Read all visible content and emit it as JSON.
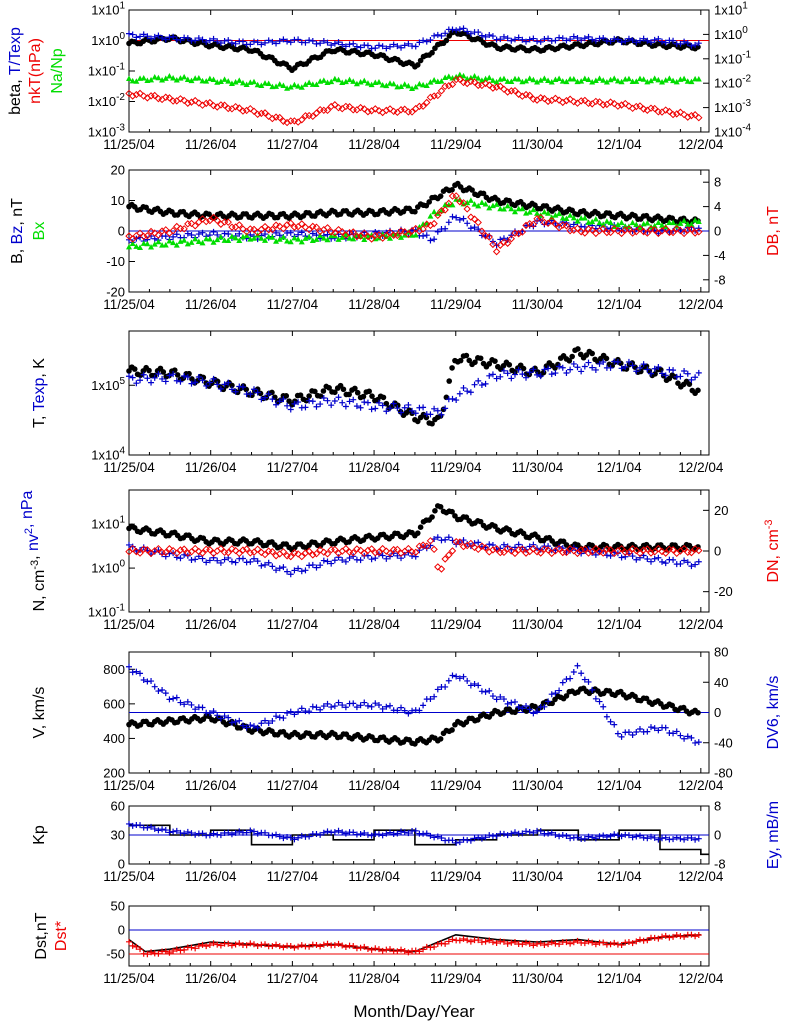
{
  "xlabel": "Month/Day/Year",
  "date_ticks": [
    "11/25/04",
    "11/26/04",
    "11/27/04",
    "11/28/04",
    "11/29/04",
    "11/30/04",
    "12/1/04",
    "12/2/04"
  ],
  "colors": {
    "black": "#000000",
    "blue": "#0000cc",
    "red": "#ee0000",
    "green": "#00dd00"
  },
  "chart_data": [
    {
      "panel": "beta",
      "type": "scatter",
      "ylabel_left": [
        [
          "beta, ",
          "black"
        ],
        [
          "T/Texp",
          "blue"
        ]
      ],
      "ylabel_left2": [
        [
          "nkT(nPa)",
          "red"
        ]
      ],
      "ylabel_left3": [
        [
          "Na/Np",
          "green"
        ]
      ],
      "y_left": {
        "scale": "log",
        "range": [
          0.001,
          10
        ],
        "ticks": [
          "1x10-3",
          "1x10-2",
          "1x10-1",
          "1x100",
          "1x101"
        ]
      },
      "y_right": {
        "scale": "log",
        "range": [
          0.0001,
          10
        ],
        "ticks": [
          "1x10-4",
          "1x10-3",
          "1x10-2",
          "1x10-1",
          "1x100",
          "1x101"
        ]
      },
      "hlines": [
        {
          "value": 1,
          "color": "red"
        }
      ],
      "series": [
        {
          "color": "black",
          "marker": "dot",
          "days": [
            0,
            0.5,
            1,
            1.5,
            2,
            2.5,
            3,
            3.5,
            4,
            4.5,
            5,
            5.5,
            6,
            6.5,
            7
          ],
          "values": [
            0.8,
            1.2,
            0.7,
            0.5,
            0.12,
            0.5,
            0.35,
            0.15,
            2,
            0.6,
            0.5,
            0.7,
            1,
            0.7,
            0.6
          ]
        },
        {
          "color": "blue",
          "marker": "plus",
          "days": [
            0,
            0.5,
            1,
            1.5,
            2,
            2.5,
            3,
            3.5,
            4,
            4.5,
            5,
            5.5,
            6,
            6.5,
            7
          ],
          "values": [
            1.5,
            1.2,
            1,
            0.8,
            1,
            0.8,
            0.6,
            0.7,
            2.5,
            1.2,
            1,
            1.2,
            1,
            1,
            0.7
          ]
        },
        {
          "color": "green",
          "marker": "triangle",
          "days": [
            0,
            0.5,
            1,
            1.5,
            2,
            2.5,
            3,
            3.5,
            4,
            4.5,
            5,
            5.5,
            6,
            6.5,
            7
          ],
          "values": [
            0.05,
            0.06,
            0.05,
            0.04,
            0.03,
            0.05,
            0.04,
            0.03,
            0.07,
            0.05,
            0.05,
            0.05,
            0.05,
            0.05,
            0.05
          ]
        },
        {
          "color": "red",
          "marker": "diamond",
          "days": [
            0,
            0.5,
            1,
            1.5,
            2,
            2.5,
            3,
            3.5,
            4,
            4.5,
            5,
            5.5,
            6,
            6.5,
            7
          ],
          "values": [
            0.018,
            0.012,
            0.008,
            0.005,
            0.002,
            0.007,
            0.005,
            0.005,
            0.05,
            0.03,
            0.012,
            0.01,
            0.008,
            0.005,
            0.003
          ]
        }
      ]
    },
    {
      "panel": "B",
      "type": "scatter",
      "ylabel_left": [
        [
          "B, ",
          "black"
        ],
        [
          "Bz",
          "blue"
        ],
        [
          ", nT",
          "black"
        ]
      ],
      "ylabel_left2": [
        [
          "Bx",
          "green"
        ]
      ],
      "ylabel_right": [
        [
          "DB, nT",
          "red"
        ]
      ],
      "y_left": {
        "scale": "linear",
        "range": [
          -20,
          20
        ],
        "ticks": [
          "-20",
          "-10",
          "0",
          "10",
          "20"
        ]
      },
      "y_right": {
        "scale": "linear",
        "range": [
          -10,
          10
        ],
        "ticks": [
          "-8",
          "-4",
          "0",
          "4",
          "8"
        ]
      },
      "hlines": [
        {
          "value": 0,
          "color": "blue"
        }
      ],
      "series": [
        {
          "color": "black",
          "marker": "dot",
          "days": [
            0,
            0.5,
            1,
            1.5,
            2,
            2.5,
            3,
            3.5,
            3.7,
            4,
            4.5,
            5,
            5.5,
            6,
            6.5,
            7
          ],
          "values": [
            8,
            6,
            5,
            5,
            5,
            6,
            6,
            7,
            10,
            15,
            10,
            8,
            6,
            5,
            4,
            3
          ]
        },
        {
          "color": "blue",
          "marker": "plus",
          "days": [
            0,
            0.5,
            1,
            1.5,
            2,
            2.5,
            3,
            3.5,
            3.7,
            4,
            4.5,
            5,
            5.5,
            6,
            6.5,
            7
          ],
          "values": [
            -3,
            -2,
            -1,
            -2,
            -1,
            -2,
            -1,
            0,
            -3,
            5,
            -4,
            3,
            2,
            1,
            0,
            1
          ]
        },
        {
          "color": "green",
          "marker": "triangle",
          "days": [
            0,
            0.5,
            1,
            1.5,
            2,
            2.5,
            3,
            3.5,
            3.7,
            4,
            4.5,
            5,
            5.5,
            6,
            6.5,
            7
          ],
          "values": [
            -5,
            -4,
            -3,
            -2,
            -3,
            -2,
            -2,
            -1,
            5,
            10,
            8,
            6,
            4,
            2,
            2,
            3
          ]
        },
        {
          "color": "red",
          "marker": "diamond",
          "days": [
            0,
            0.5,
            1,
            1.5,
            2,
            2.5,
            3,
            3.5,
            3.7,
            4,
            4.5,
            5,
            5.5,
            6,
            6.5,
            7
          ],
          "values": [
            -1,
            0,
            2,
            0,
            1,
            0,
            -1,
            0,
            1,
            6,
            -3,
            2,
            0,
            0,
            0,
            0
          ]
        }
      ]
    },
    {
      "panel": "T",
      "type": "scatter",
      "ylabel_left": [
        [
          "T, ",
          "black"
        ],
        [
          "Texp",
          "blue"
        ],
        [
          ", K",
          "black"
        ]
      ],
      "y_left": {
        "scale": "log",
        "range": [
          10000,
          600000
        ],
        "ticks": [
          "1x104",
          "1x105"
        ]
      },
      "hlines": [],
      "series": [
        {
          "color": "black",
          "marker": "dot",
          "days": [
            0,
            0.5,
            1,
            1.5,
            2,
            2.5,
            3,
            3.5,
            3.8,
            4,
            4.5,
            5,
            5.5,
            6,
            6.5,
            7
          ],
          "values": [
            160000,
            150000,
            110000,
            80000,
            60000,
            90000,
            70000,
            35000,
            30000,
            250000,
            200000,
            150000,
            300000,
            200000,
            150000,
            80000
          ]
        },
        {
          "color": "blue",
          "marker": "plus",
          "days": [
            0,
            0.5,
            1,
            1.5,
            2,
            2.5,
            3,
            3.5,
            3.8,
            4,
            4.5,
            5,
            5.5,
            6,
            6.5,
            7
          ],
          "values": [
            120000,
            130000,
            110000,
            80000,
            50000,
            60000,
            50000,
            45000,
            40000,
            70000,
            140000,
            150000,
            180000,
            200000,
            160000,
            130000
          ]
        }
      ]
    },
    {
      "panel": "N",
      "type": "scatter",
      "ylabel_left": [
        [
          "N, cm",
          "black"
        ],
        [
          "-3",
          "black",
          "sup"
        ],
        [
          ", ",
          "black"
        ],
        [
          "nv",
          "blue"
        ],
        [
          "2",
          "blue",
          "sup"
        ],
        [
          ", nPa",
          "blue"
        ]
      ],
      "ylabel_right": [
        [
          "DN, cm",
          "red"
        ],
        [
          "-3",
          "red",
          "sup"
        ]
      ],
      "y_left": {
        "scale": "log",
        "range": [
          0.1,
          60
        ],
        "ticks": [
          "1x10-1",
          "1x100",
          "1x101"
        ]
      },
      "y_right": {
        "scale": "linear",
        "range": [
          -30,
          30
        ],
        "ticks": [
          "-20",
          "0",
          "20"
        ]
      },
      "hlines": [],
      "series": [
        {
          "color": "black",
          "marker": "dot",
          "days": [
            0,
            0.5,
            1,
            1.5,
            2,
            2.5,
            3,
            3.5,
            3.8,
            4,
            4.5,
            5,
            5.5,
            6,
            6.5,
            7
          ],
          "values": [
            8,
            6,
            4,
            4,
            3,
            4,
            5,
            6,
            25,
            15,
            8,
            5,
            3,
            3,
            3,
            3
          ]
        },
        {
          "color": "blue",
          "marker": "plus",
          "days": [
            0,
            0.5,
            1,
            1.5,
            2,
            2.5,
            3,
            3.5,
            3.8,
            4,
            4.5,
            5,
            5.5,
            6,
            6.5,
            7
          ],
          "values": [
            3,
            2,
            1.5,
            1.5,
            0.8,
            1.5,
            1.8,
            2,
            5,
            4,
            3,
            3,
            2.5,
            2,
            1.5,
            1.2
          ]
        },
        {
          "color": "red",
          "marker": "diamond",
          "days": [
            0,
            0.5,
            1,
            1.5,
            2,
            2.5,
            3,
            3.5,
            3.7,
            3.8,
            4,
            4.5,
            5,
            5.5,
            6,
            6.5,
            7
          ],
          "values": [
            0,
            0,
            0,
            0,
            -2,
            0,
            0,
            0,
            5,
            -10,
            4,
            0,
            0,
            0,
            0,
            0,
            0
          ]
        }
      ]
    },
    {
      "panel": "V",
      "type": "scatter",
      "ylabel_left": [
        [
          "V, km/s",
          "black"
        ]
      ],
      "ylabel_right": [
        [
          "DV6, km/s",
          "blue"
        ]
      ],
      "y_left": {
        "scale": "linear",
        "range": [
          200,
          900
        ],
        "ticks": [
          "200",
          "400",
          "600",
          "800"
        ]
      },
      "y_right": {
        "scale": "linear",
        "range": [
          -80,
          80
        ],
        "ticks": [
          "-80",
          "-40",
          "0",
          "40",
          "80"
        ]
      },
      "hlines": [
        {
          "value": 0,
          "axis": "right",
          "color": "blue"
        }
      ],
      "series": [
        {
          "color": "black",
          "marker": "dot",
          "days": [
            0,
            0.5,
            1,
            1.5,
            2,
            2.5,
            3,
            3.5,
            3.8,
            4,
            4.5,
            5,
            5.5,
            6,
            6.5,
            7
          ],
          "values": [
            480,
            500,
            520,
            450,
            420,
            420,
            400,
            380,
            400,
            480,
            550,
            580,
            680,
            660,
            600,
            540
          ]
        },
        {
          "color": "blue",
          "marker": "plus",
          "days": [
            0,
            0.5,
            1,
            1.5,
            2,
            2.5,
            3,
            3.5,
            4,
            4.5,
            5,
            5.5,
            6,
            6.5,
            7
          ],
          "values": [
            60,
            20,
            0,
            -20,
            0,
            10,
            10,
            0,
            50,
            20,
            0,
            60,
            -30,
            -20,
            -40
          ]
        }
      ]
    },
    {
      "panel": "Kp",
      "type": "line",
      "ylabel_left": [
        [
          "Kp",
          "black"
        ]
      ],
      "ylabel_right": [
        [
          "Ey, mB/m",
          "blue"
        ]
      ],
      "y_left": {
        "scale": "linear",
        "range": [
          0,
          60
        ],
        "ticks": [
          "0",
          "30",
          "60"
        ]
      },
      "y_right": {
        "scale": "linear",
        "range": [
          -8,
          8
        ],
        "ticks": [
          "-8",
          "0",
          "8"
        ]
      },
      "hlines": [
        {
          "value": 0,
          "axis": "right",
          "color": "blue"
        }
      ],
      "series": [
        {
          "color": "black",
          "marker": "step",
          "days": [
            0,
            0.5,
            1,
            1.5,
            2,
            2.5,
            3,
            3.5,
            4,
            4.5,
            5,
            5.5,
            6,
            6.5,
            7
          ],
          "values": [
            40,
            30,
            35,
            20,
            30,
            25,
            35,
            20,
            25,
            30,
            35,
            25,
            35,
            15,
            10
          ]
        },
        {
          "color": "blue",
          "marker": "plus",
          "days": [
            0,
            0.5,
            1,
            1.5,
            2,
            2.5,
            3,
            3.5,
            4,
            4.5,
            5,
            5.5,
            6,
            6.5,
            7
          ],
          "values": [
            3,
            1,
            0,
            1,
            -1,
            1,
            0,
            1,
            -2,
            0,
            1,
            -1,
            0,
            -1,
            -1
          ]
        }
      ]
    },
    {
      "panel": "Dst",
      "type": "line",
      "ylabel_left": [
        [
          "Dst,nT",
          "black"
        ]
      ],
      "ylabel_left2": [
        [
          "Dst*",
          "red"
        ]
      ],
      "y_left": {
        "scale": "linear",
        "range": [
          -75,
          50
        ],
        "ticks": [
          "-50",
          "0",
          "50"
        ]
      },
      "hlines": [
        {
          "value": 0,
          "color": "blue"
        },
        {
          "value": -50,
          "color": "red"
        }
      ],
      "series": [
        {
          "color": "black",
          "marker": "line",
          "days": [
            0,
            0.2,
            0.5,
            1,
            1.5,
            2,
            2.5,
            3,
            3.5,
            4,
            4.5,
            5,
            5.5,
            6,
            6.5,
            7
          ],
          "values": [
            -20,
            -45,
            -40,
            -25,
            -30,
            -35,
            -30,
            -40,
            -45,
            -10,
            -20,
            -25,
            -20,
            -30,
            -15,
            -10
          ]
        },
        {
          "color": "red",
          "marker": "plus",
          "days": [
            0,
            0.2,
            0.5,
            1,
            1.5,
            2,
            2.5,
            3,
            3.5,
            4,
            4.5,
            5,
            5.5,
            6,
            6.5,
            7
          ],
          "values": [
            -25,
            -50,
            -45,
            -30,
            -30,
            -35,
            -30,
            -40,
            -45,
            -20,
            -25,
            -30,
            -25,
            -30,
            -15,
            -10
          ]
        }
      ]
    }
  ]
}
